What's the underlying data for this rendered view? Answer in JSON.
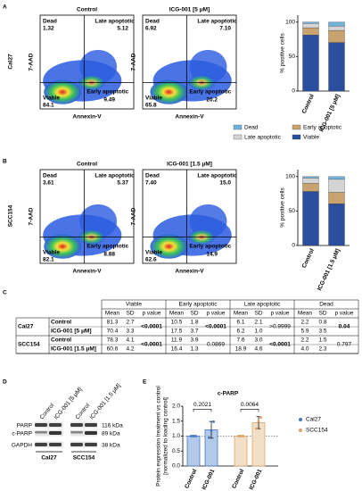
{
  "panelA": {
    "letter": "A",
    "cell_line": "Cal27",
    "plots": [
      {
        "title": "Control",
        "dead_label": "Dead",
        "dead": "1.32",
        "late_label": "Late apoptotic",
        "late": "5.12",
        "viable_label": "Viable",
        "viable": "84.1",
        "early_label": "Early apoptotic",
        "early": "9.49",
        "xlabel": "Annexin-V",
        "ylabel": "7-AAD"
      },
      {
        "title": "ICG-001 [5 μM]",
        "dead_label": "Dead",
        "dead": "6.92",
        "late_label": "Late apoptotic",
        "late": "7.10",
        "viable_label": "Viable",
        "viable": "65.8",
        "early_label": "Early apoptotic",
        "early": "20.2",
        "xlabel": "Annexin-V",
        "ylabel": "7-AAD"
      }
    ],
    "chart": {
      "type": "bar",
      "stacked": true,
      "ylabel": "% positive cells",
      "categories": [
        "Control",
        "ICG-001 [5 μM]"
      ],
      "series": [
        {
          "name": "Viable",
          "color": "#2b4f9e",
          "values": [
            81.3,
            70.4
          ]
        },
        {
          "name": "Early apoptotic",
          "color": "#c9a36f",
          "values": [
            10.5,
            17.5
          ]
        },
        {
          "name": "Late apoptotic",
          "color": "#d4d4d4",
          "values": [
            6.1,
            6.2
          ]
        },
        {
          "name": "Dead",
          "color": "#6fb3dc",
          "values": [
            2.2,
            5.9
          ]
        }
      ],
      "ylim": [
        0,
        110
      ],
      "yticks": [
        0,
        50,
        100
      ]
    }
  },
  "panelB": {
    "letter": "B",
    "cell_line": "SCC154",
    "plots": [
      {
        "title": "Control",
        "dead_label": "Dead",
        "dead": "3.61",
        "late_label": "Late apoptotic",
        "late": "5.37",
        "viable_label": "Viable",
        "viable": "82.1",
        "early_label": "Early apoptotic",
        "early": "8.88",
        "xlabel": "Annexin-V",
        "ylabel": "7-AAD"
      },
      {
        "title": "ICG-001 [1.5 μM]",
        "dead_label": "Dead",
        "dead": "7.40",
        "late_label": "Late apoptotic",
        "late": "15.0",
        "viable_label": "Viable",
        "viable": "62.6",
        "early_label": "Early apoptotic",
        "early": "14.9",
        "xlabel": "Annexin-V",
        "ylabel": "7-AAD"
      }
    ],
    "chart": {
      "type": "bar",
      "stacked": true,
      "ylabel": "% positive cells",
      "categories": [
        "Control",
        "ICG-001 [1.5 μM]"
      ],
      "series": [
        {
          "color": "#2b4f9e",
          "values": [
            78.3,
            60.6
          ]
        },
        {
          "color": "#c9a36f",
          "values": [
            11.9,
            16.4
          ]
        },
        {
          "color": "#d4d4d4",
          "values": [
            7.6,
            18.9
          ]
        },
        {
          "color": "#6fb3dc",
          "values": [
            2.2,
            4.0
          ]
        }
      ],
      "ylim": [
        0,
        110
      ],
      "yticks": [
        0,
        50,
        100
      ]
    }
  },
  "panelC": {
    "letter": "C",
    "header": [
      "Viable",
      "Early apoptotic",
      "Late apoptotic",
      "Dead"
    ],
    "subheader": [
      "Mean",
      "SD",
      "p value"
    ],
    "groups": [
      {
        "name": "Cal27",
        "conditions": [
          {
            "name": "Control",
            "values": [
              "81.3",
              "2.7",
              "10.5",
              "1.8",
              "6.1",
              "2.1",
              "2.2",
              "0.8"
            ]
          },
          {
            "name": "ICG-001 [5 μM]",
            "values": [
              "70.4",
              "3.3",
              "17.5",
              "3.7",
              "6.2",
              "1.0",
              "5.9",
              "3.5"
            ]
          }
        ],
        "p": [
          "<0.0001",
          "<0.0001",
          ">0.9999",
          "0.04"
        ],
        "p_bold": [
          true,
          true,
          false,
          true
        ]
      },
      {
        "name": "SCC154",
        "conditions": [
          {
            "name": "Control",
            "values": [
              "78.3",
              "4.1",
              "11.9",
              "3.9",
              "7.6",
              "3.0",
              "2.2",
              "1.5"
            ]
          },
          {
            "name": "ICG-001 [1.5 μM]",
            "values": [
              "60.6",
              "4.2",
              "16.4",
              "1.3",
              "18.9",
              "4.6",
              "4.0",
              "2.3"
            ]
          }
        ],
        "p": [
          "<0.0001",
          "0.0869",
          "<0.0001",
          "0.797"
        ],
        "p_bold": [
          true,
          false,
          true,
          false
        ]
      }
    ]
  },
  "panelD": {
    "letter": "D",
    "lanes": [
      "Control",
      "ICG-001 [5 μM]",
      "Control",
      "ICG-001 [1.5 μM]"
    ],
    "bands": [
      "PARP",
      "c-PARP",
      "GAPDH"
    ],
    "sizes": [
      "116 kDa",
      "89 kDa",
      "38 kDa"
    ],
    "cell_lines": [
      "Cal27",
      "SCC154"
    ]
  },
  "panelE": {
    "letter": "E",
    "chart": {
      "type": "bar",
      "title": "c-PARP",
      "ylabel": [
        "Protein expression treatment vs control",
        "[normalized to loading control]"
      ],
      "categories": [
        "Control",
        "ICG-001",
        "Control",
        "ICG-001"
      ],
      "series": [
        {
          "name": "Cal27",
          "color": "#4a78c0",
          "fill": "#b3c9ea",
          "values": [
            1.0,
            1.21
          ],
          "errors": [
            0,
            0.28
          ],
          "points": [
            [
              1.0,
              1.0,
              1.0
            ],
            [
              0.95,
              1.18,
              1.48
            ]
          ]
        },
        {
          "name": "SCC154",
          "color": "#d9a56b",
          "fill": "#f2dfc8",
          "values": [
            1.0,
            1.45
          ],
          "errors": [
            0,
            0.2
          ],
          "points": [
            [
              1.0,
              1.0,
              1.0
            ],
            [
              1.25,
              1.5,
              1.62
            ]
          ]
        }
      ],
      "p_values": [
        "0.2021",
        "0.0064"
      ],
      "reference": 1.0,
      "ylim": [
        0,
        2.0
      ],
      "yticks": [
        {
          "value": 0,
          "label": "0.0"
        },
        {
          "value": 0.5,
          "label": "0.5"
        },
        {
          "value": 1.0,
          "label": "1.0"
        },
        {
          "value": 1.5,
          "label": "1.5"
        },
        {
          "value": 2.0,
          "label": "2.0"
        }
      ]
    }
  }
}
